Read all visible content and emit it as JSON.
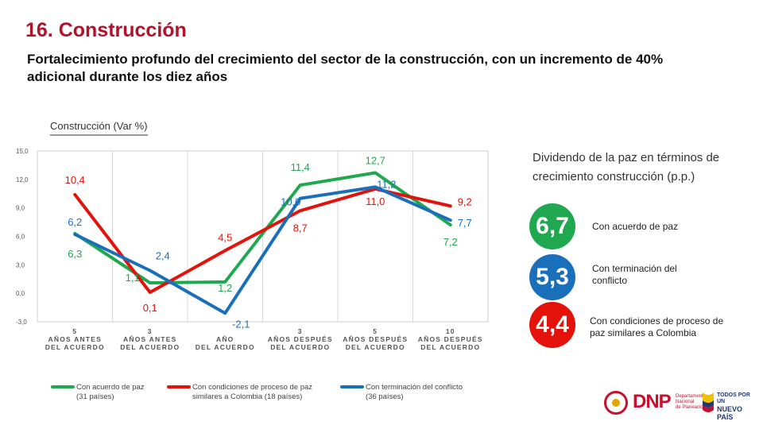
{
  "header": {
    "title": "16. Construcción",
    "subtitle": "Fortalecimiento profundo del crecimiento del sector de la construcción, con un incremento de 40% adicional durante los diez años"
  },
  "chart_data": {
    "type": "line",
    "caption": "Construcción (Var %)",
    "categories": [
      [
        "5",
        "AÑOS ANTES",
        "DEL ACUERDO"
      ],
      [
        "3",
        "AÑOS ANTES",
        "DEL ACUERDO"
      ],
      [
        "",
        "AÑO",
        "DEL ACUERDO"
      ],
      [
        "3",
        "AÑOS DESPUÉS",
        "DEL ACUERDO"
      ],
      [
        "5",
        "AÑOS DESPUÉS",
        "DEL ACUERDO"
      ],
      [
        "10",
        "AÑOS DESPUÉS",
        "DEL ACUERDO"
      ]
    ],
    "ylim": [
      -3.0,
      15.0
    ],
    "yticks": [
      "15,0",
      "12,0",
      "9,0",
      "6,0",
      "3,0",
      "0,0",
      "-3,0"
    ],
    "ytick_values": [
      15,
      12,
      9,
      6,
      3,
      0,
      -3
    ],
    "grid": "vertical",
    "series": [
      {
        "name": "Con acuerdo de paz (31 países)",
        "legend_lines": [
          "Con acuerdo de paz",
          "(31 países)"
        ],
        "color": "#1fa84f",
        "values": [
          6.3,
          1.1,
          1.2,
          11.4,
          12.7,
          7.2
        ],
        "labels": [
          "6,3",
          "1,1",
          "1,2",
          "11,4",
          "12,7",
          "7,2"
        ]
      },
      {
        "name": "Con condiciones de proceso de paz similares a Colombia (18 países)",
        "legend_lines": [
          "Con condiciones de proceso de paz",
          "similares a Colombia (18 países)"
        ],
        "color": "#e3120b",
        "values": [
          10.4,
          0.1,
          4.5,
          8.7,
          11.0,
          9.2
        ],
        "labels": [
          "10,4",
          "0,1",
          "4,5",
          "8,7",
          "11,0",
          "9,2"
        ]
      },
      {
        "name": "Con terminación del conflicto (36 países)",
        "legend_lines": [
          "Con terminación del conflicto",
          "(36 países)"
        ],
        "color": "#1a6fba",
        "values": [
          6.2,
          2.4,
          -2.1,
          10.0,
          11.2,
          7.7
        ],
        "labels": [
          "6,2",
          "2,4",
          "-2,1",
          "10,0",
          "11,2",
          "7,7"
        ]
      }
    ]
  },
  "dividend": {
    "title": "Dividendo de la paz en términos de crecimiento construcción (p.p.)",
    "items": [
      {
        "value": "6,7",
        "label": "Con acuerdo de paz",
        "color": "#1fa84f"
      },
      {
        "value": "5,3",
        "label": "Con terminación del conflicto",
        "color": "#1a6fba"
      },
      {
        "value": "4,4",
        "label": "Con condiciones de proceso de paz similares a Colombia",
        "color": "#e3120b"
      }
    ]
  },
  "footer": {
    "dnp_logo": "DNP",
    "dnp_subtitle": [
      "Departamento",
      "Nacional",
      "de Planeación"
    ],
    "slogan_lines": [
      "TODOS POR UN",
      "NUEVO PAÍS"
    ]
  }
}
